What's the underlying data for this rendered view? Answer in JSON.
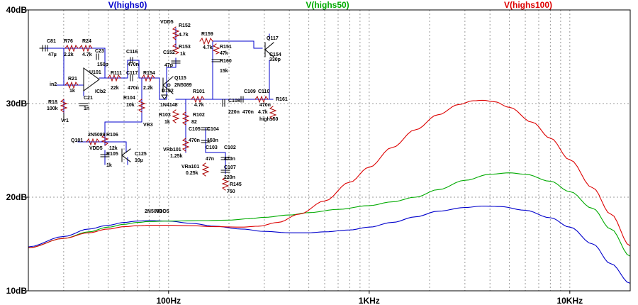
{
  "colors": {
    "background": "#ffffff",
    "grid": "#9a9a9a",
    "axis": "#000000",
    "schematic_wire": "#0000cc",
    "resistor": "#aa0000",
    "part": "#000000"
  },
  "chart_data": {
    "type": "line",
    "x_scale": "log",
    "xlim": [
      20,
      20000
    ],
    "ylim": [
      10,
      40
    ],
    "y_ticks": [
      {
        "value": 40,
        "label": "40dB"
      },
      {
        "value": 30,
        "label": "30dB"
      },
      {
        "value": 20,
        "label": "20dB"
      },
      {
        "value": 10,
        "label": "10dB"
      }
    ],
    "x_ticks": [
      {
        "value": 100,
        "label": "100Hz"
      },
      {
        "value": 1000,
        "label": "1KHz"
      },
      {
        "value": 10000,
        "label": "10KHz"
      }
    ],
    "grid": true,
    "legend_placement": "top",
    "series": [
      {
        "name": "V(highs0)",
        "color": "#0000cc",
        "points": [
          [
            20,
            14.7
          ],
          [
            30,
            15.8
          ],
          [
            40,
            16.6
          ],
          [
            50,
            17.0
          ],
          [
            60,
            17.3
          ],
          [
            70,
            17.45
          ],
          [
            80,
            17.5
          ],
          [
            100,
            17.45
          ],
          [
            130,
            17.2
          ],
          [
            170,
            16.9
          ],
          [
            230,
            16.6
          ],
          [
            300,
            16.35
          ],
          [
            400,
            16.2
          ],
          [
            500,
            16.2
          ],
          [
            600,
            16.3
          ],
          [
            800,
            16.5
          ],
          [
            1000,
            16.8
          ],
          [
            1300,
            17.3
          ],
          [
            1700,
            17.9
          ],
          [
            2200,
            18.5
          ],
          [
            3000,
            18.9
          ],
          [
            3700,
            19.05
          ],
          [
            4500,
            19.0
          ],
          [
            6000,
            18.6
          ],
          [
            8000,
            17.8
          ],
          [
            10000,
            16.8
          ],
          [
            13000,
            15.0
          ],
          [
            16000,
            12.9
          ],
          [
            20000,
            10.8
          ]
        ]
      },
      {
        "name": "V(highs50)",
        "color": "#00aa00",
        "points": [
          [
            20,
            14.6
          ],
          [
            30,
            15.6
          ],
          [
            40,
            16.3
          ],
          [
            50,
            16.8
          ],
          [
            60,
            17.1
          ],
          [
            70,
            17.3
          ],
          [
            80,
            17.4
          ],
          [
            100,
            17.45
          ],
          [
            150,
            17.5
          ],
          [
            200,
            17.55
          ],
          [
            250,
            17.7
          ],
          [
            300,
            17.85
          ],
          [
            400,
            18.1
          ],
          [
            500,
            18.35
          ],
          [
            700,
            18.7
          ],
          [
            1000,
            19.1
          ],
          [
            1300,
            19.5
          ],
          [
            1700,
            20.0
          ],
          [
            2200,
            20.8
          ],
          [
            3000,
            21.8
          ],
          [
            4000,
            22.45
          ],
          [
            5000,
            22.6
          ],
          [
            6000,
            22.45
          ],
          [
            8000,
            21.7
          ],
          [
            10000,
            20.6
          ],
          [
            13000,
            18.8
          ],
          [
            16000,
            16.6
          ],
          [
            20000,
            13.7
          ]
        ]
      },
      {
        "name": "V(highs100)",
        "color": "#dd0000",
        "points": [
          [
            20,
            14.6
          ],
          [
            30,
            15.6
          ],
          [
            40,
            16.2
          ],
          [
            50,
            16.6
          ],
          [
            60,
            16.85
          ],
          [
            70,
            16.95
          ],
          [
            80,
            17.0
          ],
          [
            100,
            17.0
          ],
          [
            130,
            16.95
          ],
          [
            170,
            16.85
          ],
          [
            230,
            16.8
          ],
          [
            280,
            16.9
          ],
          [
            350,
            17.3
          ],
          [
            450,
            18.2
          ],
          [
            600,
            19.6
          ],
          [
            800,
            21.6
          ],
          [
            1000,
            23.2
          ],
          [
            1300,
            25.3
          ],
          [
            1700,
            27.2
          ],
          [
            2200,
            28.8
          ],
          [
            2800,
            29.9
          ],
          [
            3300,
            30.3
          ],
          [
            3700,
            30.35
          ],
          [
            4200,
            30.2
          ],
          [
            5000,
            29.6
          ],
          [
            6500,
            28.0
          ],
          [
            8000,
            26.3
          ],
          [
            10000,
            24.0
          ],
          [
            13000,
            21.0
          ],
          [
            16000,
            18.2
          ],
          [
            20000,
            14.8
          ]
        ]
      }
    ]
  },
  "schematic_labels": [
    "C81",
    "47µ",
    "R76",
    "2.2k",
    "R24",
    "4.7k",
    "C23",
    "150p",
    "R21",
    "1k",
    "in2",
    "U101",
    "ICb2",
    "C21",
    "1n",
    "R18",
    "100k",
    "Vr1",
    "C116",
    "470n",
    "R111",
    "22k",
    "C117",
    "470n",
    "R154",
    "2.2k",
    "R104",
    "10k",
    "VB3",
    "VDD5",
    "R152",
    "4.7k",
    "R153",
    "1k",
    "C152",
    "47p",
    "Q115",
    "2N5089",
    "D102",
    "1N4148",
    "R103",
    "1k",
    "R101",
    "4.7k",
    "R102",
    "82",
    "C105",
    "470n",
    "C104",
    "150n",
    "C103",
    "47n",
    "C102",
    "470n",
    "C107",
    "220n",
    "R145",
    "750",
    "VRb101",
    "1.25k",
    "VRa101",
    "0.25k",
    "C108",
    "220n",
    "C109",
    "470n",
    "C110",
    "470n",
    "R161",
    "4.7k",
    "highs50",
    "R159",
    "4.7k",
    "R151",
    "47k",
    "R160",
    "15k",
    "C154",
    "330p",
    "Q117",
    "2N5089",
    "VDD5",
    "R106",
    "12k",
    "R105",
    "1k",
    "C125",
    "10µ",
    "Q101",
    "2N5089",
    "VDD5"
  ]
}
